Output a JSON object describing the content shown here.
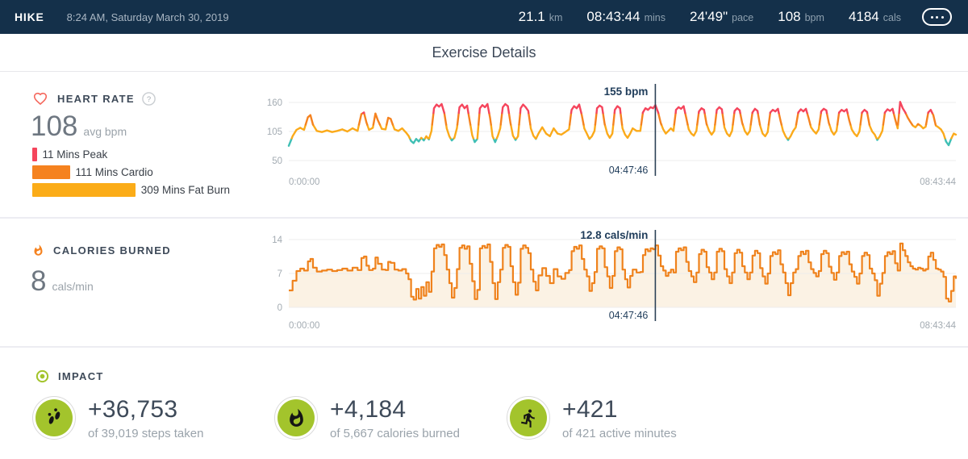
{
  "colors": {
    "navy": "#14304A",
    "impact_green": "#A3C42C",
    "heart_coral": "#F5685D",
    "calorie_orange": "#F5821F",
    "cursor_navy": "#1F3C5A"
  },
  "topbar": {
    "activity": "HIKE",
    "date": "8:24 AM, Saturday March 30, 2019",
    "stats": [
      {
        "value": "21.1",
        "unit": "km"
      },
      {
        "value": "08:43:44",
        "unit": "mins"
      },
      {
        "value": "24'49\"",
        "unit": "pace"
      },
      {
        "value": "108",
        "unit": "bpm"
      },
      {
        "value": "4184",
        "unit": "cals"
      }
    ],
    "more_icon": "ellipsis-icon"
  },
  "header": {
    "title": "Exercise Details"
  },
  "heart_rate": {
    "icon": "heart-icon",
    "label": "HEART RATE",
    "help_icon": "help-icon",
    "avg_value": "108",
    "avg_unit": "avg bpm",
    "zones": [
      {
        "label": "11 Mins Peak",
        "minutes": 11,
        "color": "#F5455C"
      },
      {
        "label": "111 Mins Cardio",
        "minutes": 111,
        "color": "#F5821F"
      },
      {
        "label": "309 Mins Fat Burn",
        "minutes": 309,
        "color": "#FBAC18"
      }
    ]
  },
  "calories": {
    "icon": "flame-icon",
    "label": "CALORIES BURNED",
    "avg_value": "8",
    "avg_unit": "cals/min"
  },
  "impact": {
    "icon": "bullseye-icon",
    "label": "IMPACT",
    "items": [
      {
        "icon": "footsteps-icon",
        "value": "+36,753",
        "caption": "of 39,019 steps taken"
      },
      {
        "icon": "flame-icon",
        "value": "+4,184",
        "caption": "of 5,667 calories burned"
      },
      {
        "icon": "runner-icon",
        "value": "+421",
        "caption": "of 421 active minutes"
      }
    ]
  },
  "chart_data": [
    {
      "type": "line",
      "title": "Heart Rate",
      "ylabel": "bpm",
      "yticks": [
        160,
        105,
        50
      ],
      "ylim": [
        45,
        168
      ],
      "duration_min": 523.73,
      "xtick_labels": [
        "0:00:00",
        "08:43:44"
      ],
      "grid": true,
      "cursor": {
        "t_min": 287.77,
        "value": 155,
        "label": "155 bpm",
        "time": "04:47:46"
      },
      "zones": {
        "thresholds": [
          92,
          118,
          140
        ],
        "colors": [
          "#3FBFB4",
          "#FBAA1A",
          "#F5821F",
          "#F5455C"
        ]
      },
      "x_min": [
        0,
        3,
        6,
        9,
        12,
        15,
        17,
        19,
        22,
        26,
        30,
        34,
        38,
        42,
        46,
        50,
        54,
        57,
        59,
        61,
        63,
        66,
        68,
        70,
        73,
        76,
        78,
        80,
        83,
        86,
        89,
        92,
        94,
        96,
        98,
        100,
        102,
        104,
        106,
        108,
        110,
        112,
        114,
        116,
        118,
        120,
        122,
        124,
        126,
        128,
        130,
        132,
        134,
        136,
        138,
        140,
        142,
        144,
        146,
        148,
        150,
        152,
        154,
        156,
        158,
        160,
        162,
        164,
        166,
        168,
        170,
        172,
        174,
        176,
        178,
        180,
        182,
        184,
        186,
        188,
        190,
        192,
        194,
        196,
        199,
        202,
        205,
        208,
        211,
        214,
        217,
        220,
        222,
        224,
        226,
        228,
        230,
        232,
        234,
        236,
        238,
        240,
        242,
        244,
        246,
        248,
        250,
        252,
        254,
        256,
        258,
        260,
        262,
        264,
        266,
        268,
        270,
        273,
        276,
        278,
        280,
        282,
        284,
        286,
        287.8,
        290,
        292,
        294,
        296,
        298,
        300,
        302,
        304,
        306,
        308,
        310,
        312,
        314,
        316,
        318,
        320,
        322,
        324,
        326,
        328,
        330,
        332,
        334,
        336,
        338,
        340,
        342,
        344,
        346,
        348,
        350,
        352,
        354,
        356,
        358,
        360,
        362,
        364,
        366,
        368,
        370,
        372,
        374,
        376,
        378,
        380,
        382,
        384,
        386,
        388,
        390,
        392,
        394,
        396,
        398,
        400,
        402,
        404,
        406,
        408,
        410,
        412,
        414,
        416,
        418,
        420,
        422,
        424,
        426,
        428,
        430,
        432,
        434,
        436,
        438,
        440,
        442,
        444,
        446,
        448,
        450,
        452,
        454,
        456,
        458,
        460,
        462,
        464,
        466,
        468,
        470,
        472,
        474,
        476,
        478,
        480,
        482,
        484,
        486,
        488,
        490,
        492,
        494,
        496,
        498,
        500,
        502,
        504,
        506,
        508,
        510,
        512,
        514,
        516,
        518,
        520,
        522,
        523.7
      ],
      "values": [
        78,
        96,
        108,
        112,
        108,
        132,
        136,
        118,
        106,
        104,
        107,
        104,
        106,
        109,
        105,
        111,
        106,
        138,
        141,
        122,
        108,
        112,
        139,
        126,
        110,
        109,
        131,
        129,
        109,
        106,
        111,
        103,
        97,
        87,
        83,
        91,
        86,
        93,
        88,
        96,
        90,
        106,
        149,
        156,
        152,
        157,
        141,
        111,
        96,
        88,
        93,
        111,
        151,
        156,
        149,
        154,
        126,
        98,
        85,
        91,
        149,
        155,
        151,
        157,
        131,
        96,
        85,
        96,
        111,
        151,
        157,
        153,
        121,
        97,
        89,
        96,
        149,
        156,
        151,
        144,
        111,
        97,
        91,
        101,
        113,
        101,
        96,
        111,
        101,
        99,
        104,
        109,
        146,
        153,
        149,
        156,
        136,
        111,
        101,
        91,
        96,
        106,
        149,
        154,
        151,
        119,
        101,
        93,
        101,
        146,
        153,
        149,
        111,
        99,
        93,
        101,
        111,
        106,
        106,
        141,
        149,
        146,
        151,
        149,
        155,
        141,
        121,
        109,
        101,
        106,
        111,
        106,
        146,
        151,
        148,
        153,
        131,
        109,
        101,
        97,
        106,
        143,
        149,
        146,
        119,
        106,
        99,
        106,
        146,
        151,
        147,
        113,
        101,
        96,
        106,
        144,
        149,
        145,
        121,
        106,
        99,
        106,
        141,
        148,
        144,
        116,
        101,
        96,
        104,
        141,
        146,
        143,
        148,
        126,
        106,
        96,
        89,
        96,
        106,
        113,
        141,
        147,
        143,
        148,
        131,
        113,
        106,
        101,
        109,
        143,
        148,
        145,
        121,
        106,
        99,
        106,
        141,
        146,
        143,
        147,
        126,
        109,
        101,
        96,
        105,
        141,
        146,
        142,
        116,
        105,
        99,
        89,
        96,
        106,
        141,
        147,
        144,
        148,
        129,
        111,
        161,
        149,
        141,
        131,
        123,
        116,
        113,
        119,
        116,
        111,
        114,
        141,
        146,
        136,
        116,
        113,
        109,
        101,
        86,
        79,
        91,
        101,
        99
      ]
    },
    {
      "type": "area",
      "title": "Calories Burned",
      "ylabel": "cals/min",
      "yticks": [
        14,
        7,
        0
      ],
      "ylim": [
        0,
        14.7
      ],
      "duration_min": 523.73,
      "xtick_labels": [
        "0:00:00",
        "08:43:44"
      ],
      "grid": true,
      "cursor": {
        "t_min": 287.77,
        "value": 12.8,
        "label": "12.8 cals/min",
        "time": "04:47:46"
      },
      "line_color": "#EF821C",
      "fill_color": "#FBF2E4",
      "x_min": [
        0,
        3,
        6,
        9,
        12,
        15,
        17,
        19,
        22,
        26,
        30,
        34,
        38,
        42,
        46,
        50,
        54,
        57,
        59,
        61,
        63,
        66,
        68,
        70,
        73,
        76,
        78,
        80,
        83,
        86,
        89,
        92,
        94,
        96,
        98,
        100,
        102,
        104,
        106,
        108,
        110,
        112,
        114,
        116,
        118,
        120,
        122,
        124,
        126,
        128,
        130,
        132,
        134,
        136,
        138,
        140,
        142,
        144,
        146,
        148,
        150,
        152,
        154,
        156,
        158,
        160,
        162,
        164,
        166,
        168,
        170,
        172,
        174,
        176,
        178,
        180,
        182,
        184,
        186,
        188,
        190,
        192,
        194,
        196,
        199,
        202,
        205,
        208,
        211,
        214,
        217,
        220,
        222,
        224,
        226,
        228,
        230,
        232,
        234,
        236,
        238,
        240,
        242,
        244,
        246,
        248,
        250,
        252,
        254,
        256,
        258,
        260,
        262,
        264,
        266,
        268,
        270,
        273,
        276,
        278,
        280,
        282,
        284,
        286,
        287.8,
        290,
        292,
        294,
        296,
        298,
        300,
        302,
        304,
        306,
        308,
        310,
        312,
        314,
        316,
        318,
        320,
        322,
        324,
        326,
        328,
        330,
        332,
        334,
        336,
        338,
        340,
        342,
        344,
        346,
        348,
        350,
        352,
        354,
        356,
        358,
        360,
        362,
        364,
        366,
        368,
        370,
        372,
        374,
        376,
        378,
        380,
        382,
        384,
        386,
        388,
        390,
        392,
        394,
        396,
        398,
        400,
        402,
        404,
        406,
        408,
        410,
        412,
        414,
        416,
        418,
        420,
        422,
        424,
        426,
        428,
        430,
        432,
        434,
        436,
        438,
        440,
        442,
        444,
        446,
        448,
        450,
        452,
        454,
        456,
        458,
        460,
        462,
        464,
        466,
        468,
        470,
        472,
        474,
        476,
        478,
        480,
        482,
        484,
        486,
        488,
        490,
        492,
        494,
        496,
        498,
        500,
        502,
        504,
        506,
        508,
        510,
        512,
        514,
        516,
        518,
        520,
        522,
        523.7
      ],
      "values": [
        3.5,
        5.5,
        7.5,
        8,
        7.6,
        9.5,
        10,
        8.2,
        7.4,
        7.6,
        7.8,
        7.5,
        7.7,
        8,
        7.6,
        8.2,
        7.7,
        10.2,
        10.5,
        8.6,
        7.7,
        8,
        10.3,
        9,
        7.8,
        7.7,
        9.4,
        9.2,
        7.8,
        7.6,
        7.9,
        7,
        5.8,
        2.2,
        1.6,
        3.8,
        1.8,
        4.2,
        2.4,
        5.2,
        3.2,
        7.4,
        12.2,
        12.9,
        12.5,
        13,
        10.8,
        7.8,
        5,
        2,
        4,
        7.9,
        12.3,
        12.8,
        12.1,
        12.6,
        9,
        5.4,
        1.7,
        3.6,
        12.2,
        12.7,
        12.3,
        13,
        9.4,
        5,
        1.7,
        5.2,
        7.8,
        12.3,
        12.9,
        12.5,
        8.5,
        5.2,
        2.6,
        5.1,
        12.1,
        12.8,
        12.3,
        11.2,
        7.8,
        5.3,
        3.5,
        6.6,
        8.1,
        6.5,
        5,
        7.9,
        6.4,
        5.9,
        7.1,
        7.7,
        11.6,
        12.5,
        12.1,
        12.8,
        10,
        7.8,
        6.4,
        3.4,
        5,
        7.3,
        12.1,
        12.6,
        12.2,
        8.3,
        6.4,
        4,
        6.5,
        11.6,
        12.4,
        12,
        7.8,
        5.8,
        4.1,
        6.5,
        7.8,
        7.2,
        7.3,
        10.8,
        12,
        11.6,
        12.2,
        12,
        12.8,
        10.7,
        8.5,
        7.6,
        6.5,
        7.2,
        7.8,
        7.2,
        11.5,
        12.2,
        11.8,
        12.4,
        9.4,
        7.5,
        6.4,
        5.2,
        7.2,
        11,
        11.9,
        11.5,
        8.3,
        7.2,
        5.8,
        7.2,
        11.5,
        12.1,
        11.6,
        7.9,
        6.4,
        5,
        7.2,
        11.2,
        11.9,
        11.3,
        8.5,
        7.2,
        5.8,
        7.2,
        10.7,
        11.7,
        11.2,
        8.1,
        6.4,
        4.9,
        7,
        10.6,
        11.4,
        11,
        11.8,
        8.9,
        7.2,
        5,
        2.5,
        5,
        7.2,
        7.9,
        10.6,
        11.5,
        11,
        11.7,
        9.3,
        7.9,
        7.1,
        6.4,
        7.5,
        11,
        11.7,
        11.2,
        8.4,
        7.1,
        5.7,
        7.2,
        10.6,
        11.4,
        11,
        11.5,
        8.9,
        7.4,
        6.3,
        4.9,
        7,
        10.6,
        11.3,
        10.8,
        8,
        7,
        5.6,
        2.4,
        4.9,
        7.1,
        10.6,
        11.4,
        11,
        11.6,
        9.1,
        7.6,
        13.2,
        11.8,
        10.6,
        9.3,
        8.5,
        8,
        7.8,
        8.2,
        8,
        7.6,
        7.9,
        10.5,
        11.3,
        9.8,
        8,
        7.8,
        7.4,
        6.3,
        1.8,
        1.2,
        3.4,
        6.4,
        5.9
      ]
    }
  ]
}
